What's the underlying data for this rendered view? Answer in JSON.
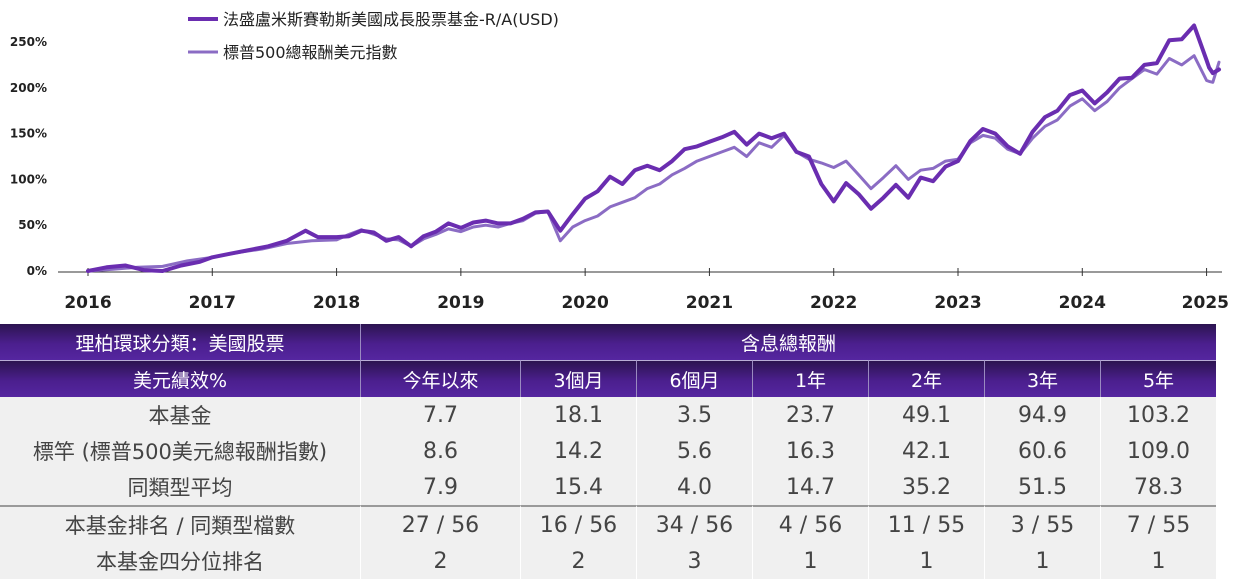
{
  "chart_data": {
    "type": "line",
    "title": "",
    "xlabel": "",
    "ylabel": "",
    "ylim": [
      0,
      280
    ],
    "y_ticks": [
      "0%",
      "50%",
      "100%",
      "150%",
      "200%",
      "250%"
    ],
    "y_tick_values": [
      0,
      50,
      100,
      150,
      200,
      250
    ],
    "x_ticks": [
      "2016",
      "2017",
      "2018",
      "2019",
      "2020",
      "2021",
      "2022",
      "2023",
      "2024",
      "2025"
    ],
    "x_tick_values": [
      2016,
      2017,
      2018,
      2019,
      2020,
      2021,
      2022,
      2023,
      2024,
      2025
    ],
    "xlim": [
      2016,
      2025.1
    ],
    "grid": false,
    "legend_position": "top-left",
    "series": [
      {
        "name": "法盛盧米斯賽勒斯美國成長股票基金-R/A(USD)",
        "color": "#6a2db0",
        "values": [
          [
            2016,
            0
          ],
          [
            2016.15,
            4
          ],
          [
            2016.3,
            6
          ],
          [
            2016.45,
            1
          ],
          [
            2016.6,
            0
          ],
          [
            2016.75,
            6
          ],
          [
            2016.9,
            10
          ],
          [
            2017,
            15
          ],
          [
            2017.15,
            19
          ],
          [
            2017.3,
            23
          ],
          [
            2017.45,
            27
          ],
          [
            2017.6,
            33
          ],
          [
            2017.75,
            44
          ],
          [
            2017.85,
            37
          ],
          [
            2018,
            37
          ],
          [
            2018.1,
            38
          ],
          [
            2018.2,
            44
          ],
          [
            2018.3,
            42
          ],
          [
            2018.4,
            33
          ],
          [
            2018.5,
            37
          ],
          [
            2018.6,
            27
          ],
          [
            2018.7,
            38
          ],
          [
            2018.8,
            43
          ],
          [
            2018.9,
            52
          ],
          [
            2019,
            47
          ],
          [
            2019.1,
            53
          ],
          [
            2019.2,
            55
          ],
          [
            2019.3,
            52
          ],
          [
            2019.4,
            52
          ],
          [
            2019.5,
            57
          ],
          [
            2019.6,
            64
          ],
          [
            2019.7,
            65
          ],
          [
            2019.8,
            44
          ],
          [
            2019.9,
            62
          ],
          [
            2020,
            79
          ],
          [
            2020.1,
            87
          ],
          [
            2020.2,
            103
          ],
          [
            2020.3,
            95
          ],
          [
            2020.4,
            110
          ],
          [
            2020.5,
            115
          ],
          [
            2020.6,
            110
          ],
          [
            2020.7,
            120
          ],
          [
            2020.8,
            133
          ],
          [
            2020.9,
            136
          ],
          [
            2021,
            141
          ],
          [
            2021.1,
            146
          ],
          [
            2021.2,
            152
          ],
          [
            2021.3,
            138
          ],
          [
            2021.4,
            150
          ],
          [
            2021.5,
            145
          ],
          [
            2021.6,
            150
          ],
          [
            2021.7,
            130
          ],
          [
            2021.8,
            125
          ],
          [
            2021.9,
            95
          ],
          [
            2022,
            76
          ],
          [
            2022.1,
            96
          ],
          [
            2022.2,
            84
          ],
          [
            2022.3,
            68
          ],
          [
            2022.4,
            80
          ],
          [
            2022.5,
            94
          ],
          [
            2022.6,
            80
          ],
          [
            2022.7,
            102
          ],
          [
            2022.8,
            98
          ],
          [
            2022.9,
            114
          ],
          [
            2023,
            120
          ],
          [
            2023.1,
            142
          ],
          [
            2023.2,
            155
          ],
          [
            2023.3,
            150
          ],
          [
            2023.4,
            136
          ],
          [
            2023.5,
            128
          ],
          [
            2023.6,
            152
          ],
          [
            2023.7,
            168
          ],
          [
            2023.8,
            175
          ],
          [
            2023.9,
            192
          ],
          [
            2024,
            197
          ],
          [
            2024.1,
            183
          ],
          [
            2024.2,
            195
          ],
          [
            2024.3,
            210
          ],
          [
            2024.4,
            211
          ],
          [
            2024.5,
            225
          ],
          [
            2024.6,
            227
          ],
          [
            2024.7,
            252
          ],
          [
            2024.8,
            253
          ],
          [
            2024.9,
            268
          ],
          [
            2025,
            230
          ],
          [
            2025.02,
            222
          ],
          [
            2025.05,
            216
          ],
          [
            2025.1,
            220
          ]
        ]
      },
      {
        "name": "標普500總報酬美元指數",
        "color": "#8b6cc4",
        "values": [
          [
            2016,
            0
          ],
          [
            2016.2,
            2
          ],
          [
            2016.4,
            4
          ],
          [
            2016.6,
            5
          ],
          [
            2016.8,
            11
          ],
          [
            2017,
            15
          ],
          [
            2017.2,
            20
          ],
          [
            2017.4,
            24
          ],
          [
            2017.6,
            30
          ],
          [
            2017.8,
            33
          ],
          [
            2018,
            34
          ],
          [
            2018.1,
            40
          ],
          [
            2018.2,
            45
          ],
          [
            2018.3,
            40
          ],
          [
            2018.4,
            35
          ],
          [
            2018.5,
            34
          ],
          [
            2018.6,
            27
          ],
          [
            2018.7,
            35
          ],
          [
            2018.8,
            40
          ],
          [
            2018.9,
            46
          ],
          [
            2019,
            43
          ],
          [
            2019.1,
            48
          ],
          [
            2019.2,
            50
          ],
          [
            2019.3,
            48
          ],
          [
            2019.4,
            52
          ],
          [
            2019.5,
            55
          ],
          [
            2019.6,
            63
          ],
          [
            2019.7,
            65
          ],
          [
            2019.8,
            33
          ],
          [
            2019.9,
            48
          ],
          [
            2020,
            55
          ],
          [
            2020.1,
            60
          ],
          [
            2020.2,
            70
          ],
          [
            2020.3,
            75
          ],
          [
            2020.4,
            80
          ],
          [
            2020.5,
            90
          ],
          [
            2020.6,
            95
          ],
          [
            2020.7,
            105
          ],
          [
            2020.8,
            112
          ],
          [
            2020.9,
            120
          ],
          [
            2021,
            125
          ],
          [
            2021.1,
            130
          ],
          [
            2021.2,
            135
          ],
          [
            2021.3,
            125
          ],
          [
            2021.4,
            140
          ],
          [
            2021.5,
            135
          ],
          [
            2021.6,
            148
          ],
          [
            2021.7,
            130
          ],
          [
            2021.8,
            122
          ],
          [
            2021.9,
            118
          ],
          [
            2022,
            113
          ],
          [
            2022.1,
            120
          ],
          [
            2022.2,
            105
          ],
          [
            2022.3,
            90
          ],
          [
            2022.4,
            102
          ],
          [
            2022.5,
            115
          ],
          [
            2022.6,
            100
          ],
          [
            2022.7,
            110
          ],
          [
            2022.8,
            112
          ],
          [
            2022.9,
            120
          ],
          [
            2023,
            122
          ],
          [
            2023.1,
            140
          ],
          [
            2023.2,
            148
          ],
          [
            2023.3,
            145
          ],
          [
            2023.4,
            133
          ],
          [
            2023.5,
            128
          ],
          [
            2023.6,
            145
          ],
          [
            2023.7,
            158
          ],
          [
            2023.8,
            165
          ],
          [
            2023.9,
            180
          ],
          [
            2024,
            188
          ],
          [
            2024.1,
            175
          ],
          [
            2024.2,
            185
          ],
          [
            2024.3,
            200
          ],
          [
            2024.4,
            210
          ],
          [
            2024.5,
            220
          ],
          [
            2024.6,
            215
          ],
          [
            2024.7,
            232
          ],
          [
            2024.8,
            225
          ],
          [
            2024.9,
            235
          ],
          [
            2025,
            208
          ],
          [
            2025.02,
            207
          ],
          [
            2025.05,
            206
          ],
          [
            2025.1,
            228
          ]
        ]
      }
    ]
  },
  "table": {
    "category_label": "理柏環球分類：美國股票",
    "group_header": "含息總報酬",
    "row_header": "美元績效%",
    "periods": [
      "今年以來",
      "3個月",
      "6個月",
      "1年",
      "2年",
      "3年",
      "5年"
    ],
    "rows": [
      {
        "label": "本基金",
        "values": [
          "7.7",
          "18.1",
          "3.5",
          "23.7",
          "49.1",
          "94.9",
          "103.2"
        ]
      },
      {
        "label": "標竿 (標普500美元總報酬指數)",
        "values": [
          "8.6",
          "14.2",
          "5.6",
          "16.3",
          "42.1",
          "60.6",
          "109.0"
        ]
      },
      {
        "label": "同類型平均",
        "values": [
          "7.9",
          "15.4",
          "4.0",
          "14.7",
          "35.2",
          "51.5",
          "78.3"
        ]
      },
      {
        "label": "本基金排名 / 同類型檔數",
        "values": [
          "27 / 56",
          "16 / 56",
          "34 / 56",
          "4 / 56",
          "11 / 55",
          "3 / 55",
          "7 / 55"
        ]
      },
      {
        "label": "本基金四分位排名",
        "values": [
          "2",
          "2",
          "3",
          "1",
          "1",
          "1",
          "1"
        ]
      }
    ]
  }
}
